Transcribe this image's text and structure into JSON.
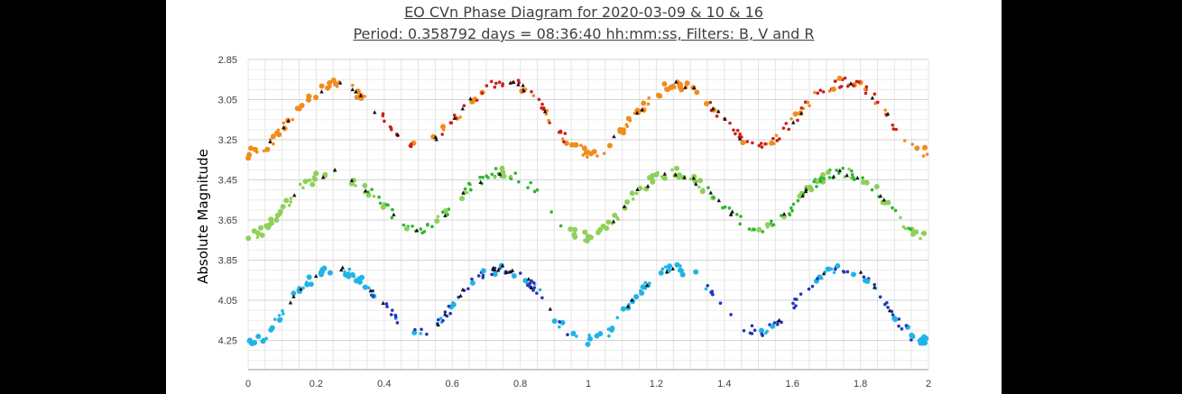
{
  "chart_data": {
    "type": "scatter",
    "title": "EO CVn Phase Diagram for 2020-03-09 & 10 & 16",
    "subtitle": "Period: 0.358792 days = 08:36:40 hh:mm:ss, Filters: B, V and R",
    "xlabel": "",
    "ylabel": "Absolute Magnitude",
    "xlim": [
      0,
      2
    ],
    "ylim": [
      2.85,
      4.4
    ],
    "y_reversed": true,
    "grid": true,
    "x_ticks": [
      "0",
      "0.2",
      "0.4",
      "0.6",
      "0.8",
      "1",
      "1.2",
      "1.4",
      "1.6",
      "1.8",
      "2"
    ],
    "y_ticks": [
      "2.85",
      "3.05",
      "3.25",
      "3.45",
      "3.65",
      "3.85",
      "4.05",
      "4.25"
    ],
    "series": [
      {
        "color": "#f08c1c",
        "alt_color": "#cc1f1a",
        "phase": [
          0.0,
          0.05,
          0.1,
          0.15,
          0.2,
          0.25,
          0.3,
          0.35,
          0.4,
          0.45,
          0.5,
          0.55,
          0.6,
          0.65,
          0.7,
          0.75,
          0.8,
          0.85,
          0.9,
          0.95,
          1.0
        ],
        "mag": [
          3.32,
          3.3,
          3.2,
          3.1,
          3.02,
          2.97,
          2.99,
          3.06,
          3.15,
          3.24,
          3.28,
          3.25,
          3.16,
          3.06,
          2.99,
          2.96,
          2.98,
          3.06,
          3.18,
          3.28,
          3.32
        ]
      },
      {
        "color": "#8fd05a",
        "alt_color": "#2db52d",
        "phase": [
          0.0,
          0.05,
          0.1,
          0.15,
          0.2,
          0.25,
          0.3,
          0.35,
          0.4,
          0.45,
          0.5,
          0.55,
          0.6,
          0.65,
          0.7,
          0.75,
          0.8,
          0.85,
          0.9,
          0.95,
          1.0
        ],
        "mag": [
          3.73,
          3.7,
          3.6,
          3.5,
          3.44,
          3.41,
          3.44,
          3.5,
          3.58,
          3.66,
          3.7,
          3.67,
          3.59,
          3.49,
          3.43,
          3.41,
          3.44,
          3.51,
          3.62,
          3.71,
          3.74
        ]
      },
      {
        "color": "#20b4e6",
        "alt_color": "#2636b8",
        "phase": [
          0.0,
          0.05,
          0.1,
          0.15,
          0.2,
          0.25,
          0.3,
          0.35,
          0.4,
          0.45,
          0.5,
          0.55,
          0.6,
          0.65,
          0.7,
          0.75,
          0.8,
          0.85,
          0.9,
          0.95,
          1.0
        ],
        "mag": [
          4.25,
          4.23,
          4.12,
          4.0,
          3.93,
          3.89,
          3.91,
          3.98,
          4.07,
          4.17,
          4.22,
          4.18,
          4.08,
          3.97,
          3.91,
          3.89,
          3.92,
          4.0,
          4.13,
          4.23,
          4.26
        ]
      }
    ]
  }
}
